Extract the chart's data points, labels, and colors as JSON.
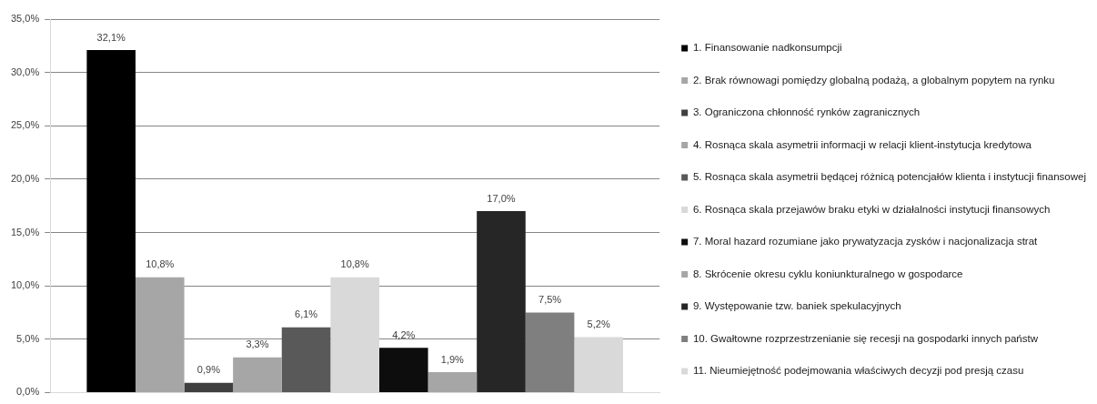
{
  "chart_data": {
    "type": "bar",
    "categories": [
      null
    ],
    "ylim": [
      0,
      35
    ],
    "yticks": [
      {
        "value": 0,
        "label": "0,0%"
      },
      {
        "value": 5,
        "label": "5,0%"
      },
      {
        "value": 10,
        "label": "10,0%"
      },
      {
        "value": 15,
        "label": "15,0%"
      },
      {
        "value": 20,
        "label": "20,0%"
      },
      {
        "value": 25,
        "label": "25,0%"
      },
      {
        "value": 30,
        "label": "30,0%"
      },
      {
        "value": 35,
        "label": "35,0%"
      }
    ],
    "grid": "y",
    "legend": "right",
    "series": [
      {
        "name": "1. Finansowanie nadkonsumpcji",
        "color": "#000000",
        "values": [
          32.1
        ],
        "value_labels": [
          "32,1%"
        ]
      },
      {
        "name": "2. Brak równowagi pomiędzy globalną podażą, a globalnym popytem na rynku",
        "color": "#a6a6a6",
        "values": [
          10.8
        ],
        "value_labels": [
          "10,8%"
        ]
      },
      {
        "name": "3. Ograniczona chłonność rynków zagranicznych",
        "color": "#3f3f3f",
        "values": [
          0.9
        ],
        "value_labels": [
          "0,9%"
        ]
      },
      {
        "name": "4. Rosnąca skala asymetrii informacji w relacji klient-instytucja kredytowa",
        "color": "#a6a6a6",
        "values": [
          3.3
        ],
        "value_labels": [
          "3,3%"
        ]
      },
      {
        "name": "5. Rosnąca skala asymetrii będącej różnicą potencjałów klienta i instytucji finansowej",
        "color": "#595959",
        "values": [
          6.1
        ],
        "value_labels": [
          "6,1%"
        ]
      },
      {
        "name": "6. Rosnąca skala przejawów braku etyki w działalności instytucji finansowych",
        "color": "#d9d9d9",
        "values": [
          10.8
        ],
        "value_labels": [
          "10,8%"
        ]
      },
      {
        "name": "7. Moral hazard rozumiane jako prywatyzacja zysków i nacjonalizacja strat",
        "color": "#0d0d0d",
        "values": [
          4.2
        ],
        "value_labels": [
          "4,2%"
        ]
      },
      {
        "name": "8. Skrócenie okresu cyklu koniunkturalnego w gospodarce",
        "color": "#a6a6a6",
        "values": [
          1.9
        ],
        "value_labels": [
          "1,9%"
        ]
      },
      {
        "name": "9. Występowanie tzw. baniek spekulacyjnych",
        "color": "#262626",
        "values": [
          17.0
        ],
        "value_labels": [
          "17,0%"
        ]
      },
      {
        "name": "10. Gwałtowne rozprzestrzenianie się recesji na gospodarki innych państw",
        "color": "#7f7f7f",
        "values": [
          7.5
        ],
        "value_labels": [
          "7,5%"
        ]
      },
      {
        "name": "11. Nieumiejętność podejmowania właściwych decyzji pod presją czasu",
        "color": "#d9d9d9",
        "values": [
          5.2
        ],
        "value_labels": [
          "5,2%"
        ]
      }
    ]
  }
}
